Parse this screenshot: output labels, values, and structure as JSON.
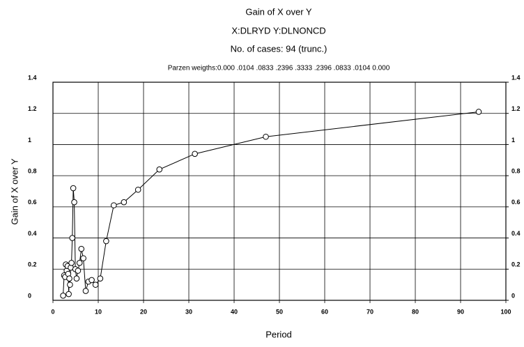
{
  "chart_data": {
    "type": "line",
    "title": "Gain of X over Y",
    "subtitle": "X:DLRYD Y:DLNONCD",
    "cases": "No. of cases: 94 (trunc.)",
    "weights": "Parzen weigths:0.000 .0104 .0833 .2396 .3333 .2396 .0833 .0104 0.000",
    "xlabel": "Period",
    "ylabel": "Gain of X over Y",
    "color": "#000000",
    "grid": true,
    "x": [
      2.24,
      2.47,
      2.69,
      2.85,
      3.03,
      3.24,
      3.36,
      3.48,
      3.62,
      3.76,
      3.92,
      4.09,
      4.27,
      4.48,
      4.7,
      4.95,
      5.22,
      5.53,
      5.88,
      6.27,
      6.71,
      7.23,
      7.83,
      8.55,
      9.4,
      10.44,
      11.75,
      13.43,
      15.67,
      18.8,
      23.5,
      31.33,
      47,
      94
    ],
    "values": [
      0.03,
      0.16,
      0.15,
      0.23,
      0.19,
      0.22,
      0.17,
      0.04,
      0.14,
      0.1,
      0.21,
      0.24,
      0.4,
      0.72,
      0.63,
      0.2,
      0.14,
      0.19,
      0.24,
      0.33,
      0.27,
      0.06,
      0.12,
      0.13,
      0.1,
      0.14,
      0.38,
      0.61,
      0.63,
      0.71,
      0.84,
      0.94,
      1.05,
      1.21
    ],
    "xlim": [
      0,
      100
    ],
    "xticks": [
      0,
      10,
      20,
      30,
      40,
      50,
      60,
      70,
      80,
      90,
      100
    ],
    "ylim": [
      0,
      1.4
    ],
    "yticks": [
      0,
      0.2,
      0.4,
      0.6,
      0.8,
      1,
      1.2,
      1.4
    ],
    "y2lim": [
      0,
      1.4
    ],
    "y2ticks": [
      0,
      0.2,
      0.4,
      0.6,
      0.8,
      1,
      1.2,
      1.4
    ]
  }
}
